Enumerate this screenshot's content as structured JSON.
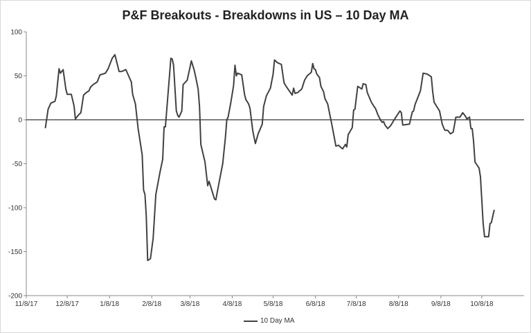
{
  "chart_data": {
    "type": "line",
    "title": "P&F Breakouts - Breakdowns in US – 10 Day MA",
    "xlabel": "",
    "ylabel": "",
    "ylim": [
      -200,
      100
    ],
    "yticks": [
      100,
      50,
      0,
      -50,
      -100,
      -150,
      -200
    ],
    "xlim": [
      "2017-11-08",
      "2018-11-08"
    ],
    "xticks": [
      {
        "date": "2017-11-08",
        "label": "11/8/17"
      },
      {
        "date": "2017-12-08",
        "label": "12/8/17"
      },
      {
        "date": "2018-01-08",
        "label": "1/8/18"
      },
      {
        "date": "2018-02-08",
        "label": "2/8/18"
      },
      {
        "date": "2018-03-08",
        "label": "3/8/18"
      },
      {
        "date": "2018-04-08",
        "label": "4/8/18"
      },
      {
        "date": "2018-05-08",
        "label": "5/8/18"
      },
      {
        "date": "2018-06-08",
        "label": "6/8/18"
      },
      {
        "date": "2018-07-08",
        "label": "7/8/18"
      },
      {
        "date": "2018-08-08",
        "label": "8/8/18"
      },
      {
        "date": "2018-09-08",
        "label": "9/8/18"
      },
      {
        "date": "2018-10-08",
        "label": "10/8/18"
      }
    ],
    "grid": false,
    "zero_line": true,
    "legend": "bottom",
    "series": [
      {
        "name": "10 Day MA",
        "color": "#404040",
        "points": [
          [
            "2017-11-22",
            -9
          ],
          [
            "2017-11-24",
            12
          ],
          [
            "2017-11-26",
            19
          ],
          [
            "2017-11-29",
            21
          ],
          [
            "2017-11-30",
            27
          ],
          [
            "2017-12-02",
            58
          ],
          [
            "2017-12-03",
            53
          ],
          [
            "2017-12-05",
            57
          ],
          [
            "2017-12-07",
            35
          ],
          [
            "2017-12-08",
            29
          ],
          [
            "2017-12-11",
            29
          ],
          [
            "2017-12-13",
            16
          ],
          [
            "2017-12-14",
            1
          ],
          [
            "2017-12-16",
            5
          ],
          [
            "2017-12-18",
            8
          ],
          [
            "2017-12-20",
            28
          ],
          [
            "2017-12-22",
            31
          ],
          [
            "2017-12-24",
            33
          ],
          [
            "2017-12-25",
            37
          ],
          [
            "2017-12-27",
            40
          ],
          [
            "2017-12-30",
            43
          ],
          [
            "2018-01-01",
            51
          ],
          [
            "2018-01-03",
            52
          ],
          [
            "2018-01-05",
            53
          ],
          [
            "2018-01-07",
            58
          ],
          [
            "2018-01-10",
            70
          ],
          [
            "2018-01-12",
            74
          ],
          [
            "2018-01-15",
            55
          ],
          [
            "2018-01-17",
            55
          ],
          [
            "2018-01-20",
            57
          ],
          [
            "2018-01-24",
            43
          ],
          [
            "2018-01-25",
            29
          ],
          [
            "2018-01-27",
            18
          ],
          [
            "2018-01-29",
            -10
          ],
          [
            "2018-02-01",
            -40
          ],
          [
            "2018-02-02",
            -80
          ],
          [
            "2018-02-03",
            -85
          ],
          [
            "2018-02-04",
            -110
          ],
          [
            "2018-02-05",
            -160
          ],
          [
            "2018-02-07",
            -158
          ],
          [
            "2018-02-09",
            -135
          ],
          [
            "2018-02-11",
            -85
          ],
          [
            "2018-02-14",
            -60
          ],
          [
            "2018-02-16",
            -45
          ],
          [
            "2018-02-17",
            -8
          ],
          [
            "2018-02-18",
            -8
          ],
          [
            "2018-02-21",
            50
          ],
          [
            "2018-02-22",
            70
          ],
          [
            "2018-02-23",
            69
          ],
          [
            "2018-02-24",
            62
          ],
          [
            "2018-02-26",
            10
          ],
          [
            "2018-02-27",
            5
          ],
          [
            "2018-02-28",
            3
          ],
          [
            "2018-03-02",
            10
          ],
          [
            "2018-03-03",
            40
          ],
          [
            "2018-03-06",
            45
          ],
          [
            "2018-03-09",
            67
          ],
          [
            "2018-03-11",
            57
          ],
          [
            "2018-03-12",
            50
          ],
          [
            "2018-03-14",
            35
          ],
          [
            "2018-03-15",
            15
          ],
          [
            "2018-03-16",
            -28
          ],
          [
            "2018-03-19",
            -48
          ],
          [
            "2018-03-21",
            -75
          ],
          [
            "2018-03-22",
            -70
          ],
          [
            "2018-03-26",
            -90
          ],
          [
            "2018-03-27",
            -91
          ],
          [
            "2018-03-29",
            -74
          ],
          [
            "2018-04-01",
            -50
          ],
          [
            "2018-04-03",
            -20
          ],
          [
            "2018-04-04",
            0
          ],
          [
            "2018-04-05",
            3
          ],
          [
            "2018-04-07",
            20
          ],
          [
            "2018-04-09",
            39
          ],
          [
            "2018-04-10",
            62
          ],
          [
            "2018-04-11",
            50
          ],
          [
            "2018-04-12",
            53
          ],
          [
            "2018-04-15",
            51
          ],
          [
            "2018-04-17",
            29
          ],
          [
            "2018-04-18",
            23
          ],
          [
            "2018-04-20",
            18
          ],
          [
            "2018-04-21",
            13
          ],
          [
            "2018-04-23",
            -12
          ],
          [
            "2018-04-24",
            -20
          ],
          [
            "2018-04-25",
            -27
          ],
          [
            "2018-04-27",
            -16
          ],
          [
            "2018-04-30",
            -5
          ],
          [
            "2018-05-01",
            15
          ],
          [
            "2018-05-03",
            27
          ],
          [
            "2018-05-06",
            36
          ],
          [
            "2018-05-08",
            52
          ],
          [
            "2018-05-09",
            68
          ],
          [
            "2018-05-11",
            65
          ],
          [
            "2018-05-14",
            63
          ],
          [
            "2018-05-16",
            42
          ],
          [
            "2018-05-18",
            37
          ],
          [
            "2018-05-22",
            28
          ],
          [
            "2018-05-23",
            36
          ],
          [
            "2018-05-24",
            30
          ],
          [
            "2018-05-26",
            31
          ],
          [
            "2018-05-29",
            35
          ],
          [
            "2018-05-31",
            45
          ],
          [
            "2018-06-02",
            50
          ],
          [
            "2018-06-05",
            54
          ],
          [
            "2018-06-06",
            64
          ],
          [
            "2018-06-07",
            58
          ],
          [
            "2018-06-08",
            57
          ],
          [
            "2018-06-09",
            52
          ],
          [
            "2018-06-11",
            48
          ],
          [
            "2018-06-12",
            38
          ],
          [
            "2018-06-14",
            32
          ],
          [
            "2018-06-15",
            24
          ],
          [
            "2018-06-17",
            18
          ],
          [
            "2018-06-20",
            -5
          ],
          [
            "2018-06-23",
            -30
          ],
          [
            "2018-06-25",
            -29
          ],
          [
            "2018-06-27",
            -32
          ],
          [
            "2018-06-28",
            -33
          ],
          [
            "2018-06-30",
            -28
          ],
          [
            "2018-07-01",
            -31
          ],
          [
            "2018-07-02",
            -17
          ],
          [
            "2018-07-05",
            -9
          ],
          [
            "2018-07-06",
            11
          ],
          [
            "2018-07-07",
            12
          ],
          [
            "2018-07-09",
            38
          ],
          [
            "2018-07-12",
            35
          ],
          [
            "2018-07-13",
            41
          ],
          [
            "2018-07-15",
            40
          ],
          [
            "2018-07-16",
            31
          ],
          [
            "2018-07-19",
            20
          ],
          [
            "2018-07-21",
            15
          ],
          [
            "2018-07-22",
            13
          ],
          [
            "2018-07-24",
            5
          ],
          [
            "2018-07-26",
            -1
          ],
          [
            "2018-07-27",
            -3
          ],
          [
            "2018-07-28",
            -2
          ],
          [
            "2018-07-29",
            -6
          ],
          [
            "2018-07-31",
            -10
          ],
          [
            "2018-08-02",
            -7
          ],
          [
            "2018-08-04",
            -2
          ],
          [
            "2018-08-06",
            3
          ],
          [
            "2018-08-09",
            10
          ],
          [
            "2018-08-10",
            8
          ],
          [
            "2018-08-11",
            -6
          ],
          [
            "2018-08-16",
            -5
          ],
          [
            "2018-08-18",
            9
          ],
          [
            "2018-08-19",
            10
          ],
          [
            "2018-08-20",
            17
          ],
          [
            "2018-08-24",
            33
          ],
          [
            "2018-08-26",
            53
          ],
          [
            "2018-08-29",
            52
          ],
          [
            "2018-09-01",
            49
          ],
          [
            "2018-09-02",
            32
          ],
          [
            "2018-09-03",
            20
          ],
          [
            "2018-09-05",
            15
          ],
          [
            "2018-09-07",
            10
          ],
          [
            "2018-09-09",
            -5
          ],
          [
            "2018-09-10",
            -9
          ],
          [
            "2018-09-11",
            -12
          ],
          [
            "2018-09-13",
            -12
          ],
          [
            "2018-09-15",
            -16
          ],
          [
            "2018-09-17",
            -14
          ],
          [
            "2018-09-19",
            3
          ],
          [
            "2018-09-22",
            3
          ],
          [
            "2018-09-24",
            8
          ],
          [
            "2018-09-26",
            4
          ],
          [
            "2018-09-27",
            1
          ],
          [
            "2018-09-29",
            3
          ],
          [
            "2018-09-30",
            -10
          ],
          [
            "2018-10-01",
            -10
          ],
          [
            "2018-10-02",
            -25
          ],
          [
            "2018-10-03",
            -48
          ],
          [
            "2018-10-06",
            -55
          ],
          [
            "2018-10-07",
            -65
          ],
          [
            "2018-10-09",
            -118
          ],
          [
            "2018-10-10",
            -133
          ],
          [
            "2018-10-13",
            -133
          ],
          [
            "2018-10-14",
            -118
          ],
          [
            "2018-10-15",
            -117
          ],
          [
            "2018-10-17",
            -103
          ]
        ]
      }
    ]
  }
}
